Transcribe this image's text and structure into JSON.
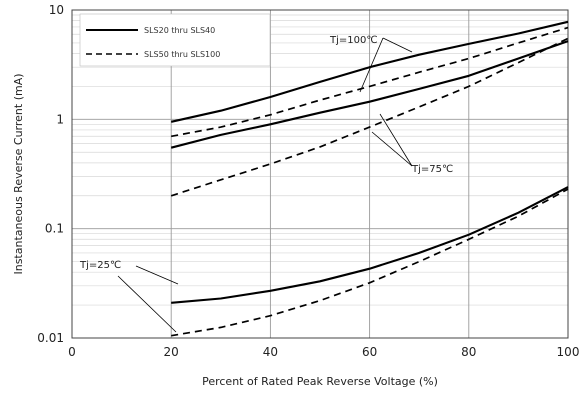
{
  "chart_data": {
    "type": "line",
    "xlabel": "Percent of Rated Peak Reverse Voltage (%)",
    "ylabel": "Instantaneous Reverse Current (mA)",
    "xlim": [
      0,
      100
    ],
    "ylim": [
      0.01,
      10
    ],
    "yscale": "log",
    "grid": true,
    "legend_position": "top-left",
    "x_ticks": [
      "0",
      "20",
      "40",
      "60",
      "80",
      "100"
    ],
    "y_ticks": [
      "0.01",
      "0.1",
      "1",
      "10"
    ],
    "legend": [
      {
        "label": "SLS20 thru SLS40",
        "style": "solid"
      },
      {
        "label": "SLS50 thru SLS100",
        "style": "dashed"
      }
    ],
    "series": [
      {
        "group": "Tj=100°C",
        "style": "solid",
        "x": [
          20,
          30,
          40,
          50,
          60,
          70,
          80,
          90,
          100
        ],
        "y": [
          0.95,
          1.2,
          1.6,
          2.2,
          3.0,
          3.9,
          4.9,
          6.1,
          7.8
        ]
      },
      {
        "group": "Tj=100°C",
        "style": "dashed",
        "x": [
          20,
          30,
          40,
          50,
          60,
          70,
          80,
          90,
          100
        ],
        "y": [
          0.7,
          0.85,
          1.1,
          1.5,
          2.0,
          2.7,
          3.6,
          5.0,
          6.9
        ]
      },
      {
        "group": "Tj=75°C",
        "style": "solid",
        "x": [
          20,
          30,
          40,
          50,
          60,
          70,
          80,
          90,
          100
        ],
        "y": [
          0.55,
          0.72,
          0.9,
          1.15,
          1.45,
          1.9,
          2.5,
          3.6,
          5.2
        ]
      },
      {
        "group": "Tj=75°C",
        "style": "dashed",
        "x": [
          20,
          30,
          40,
          50,
          60,
          70,
          80,
          90,
          100
        ],
        "y": [
          0.2,
          0.28,
          0.39,
          0.56,
          0.85,
          1.3,
          2.0,
          3.3,
          5.5
        ]
      },
      {
        "group": "Tj=25°C",
        "style": "solid",
        "x": [
          20,
          30,
          40,
          50,
          60,
          70,
          80,
          90,
          100
        ],
        "y": [
          0.021,
          0.023,
          0.027,
          0.033,
          0.043,
          0.06,
          0.088,
          0.14,
          0.24
        ]
      },
      {
        "group": "Tj=25°C",
        "style": "dashed",
        "x": [
          20,
          30,
          40,
          50,
          60,
          70,
          80,
          90,
          100
        ],
        "y": [
          0.0105,
          0.0125,
          0.016,
          0.022,
          0.032,
          0.05,
          0.08,
          0.13,
          0.23
        ]
      }
    ],
    "annotations": [
      {
        "text": "Tj=100℃"
      },
      {
        "text": "Tj=75℃"
      },
      {
        "text": "Tj=25℃"
      }
    ]
  }
}
